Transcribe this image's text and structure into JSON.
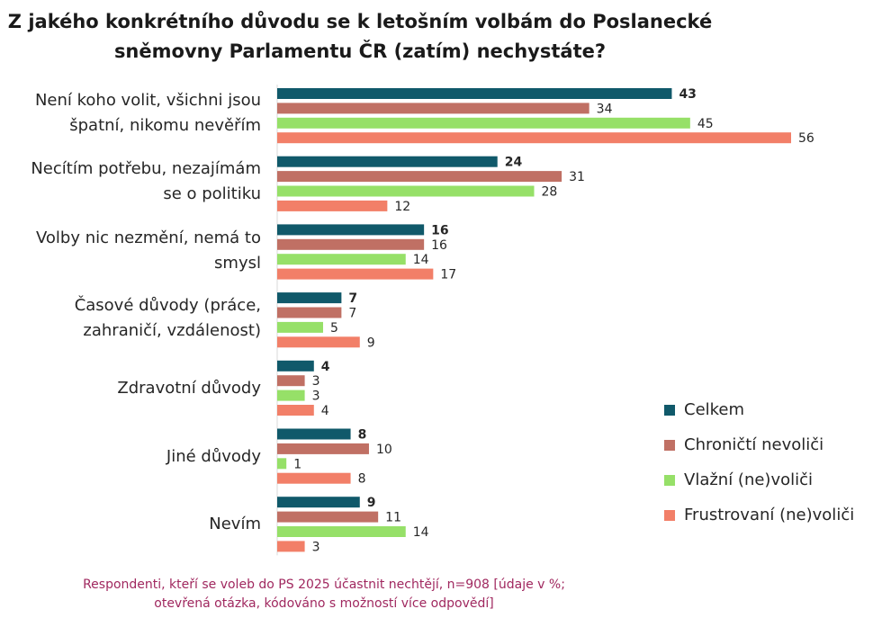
{
  "chart_data": {
    "type": "bar",
    "orientation": "horizontal",
    "title_lines": [
      "Z jakého konkrétního důvodu se k letošním volbám do Poslanecké",
      "sněmovny Parlamentu ČR (zatím) nechystáte?"
    ],
    "categories": [
      [
        "Není koho volit, všichni jsou",
        "špatní, nikomu nevěřím"
      ],
      [
        "Necítím potřebu, nezajímám",
        "se o politiku"
      ],
      [
        "Volby nic nezmění, nemá to",
        "smysl"
      ],
      [
        "Časové důvody (práce,",
        "zahraničí, vzdálenost)"
      ],
      [
        "Zdravotní důvody"
      ],
      [
        "Jiné důvody"
      ],
      [
        "Nevím"
      ]
    ],
    "series": [
      {
        "name": "Celkem",
        "color": "#10596a",
        "bold_labels": true,
        "values": [
          43,
          24,
          16,
          7,
          4,
          8,
          9
        ]
      },
      {
        "name": "Chroničtí nevoliči",
        "color": "#c07064",
        "bold_labels": false,
        "values": [
          34,
          31,
          16,
          7,
          3,
          10,
          11
        ]
      },
      {
        "name": "Vlažní (ne)voliči",
        "color": "#96e068",
        "bold_labels": false,
        "values": [
          45,
          28,
          14,
          5,
          3,
          1,
          14
        ]
      },
      {
        "name": "Frustrovaní (ne)voliči",
        "color": "#f27f68",
        "bold_labels": false,
        "values": [
          56,
          12,
          17,
          9,
          4,
          8,
          3
        ]
      }
    ],
    "xlim": [
      0,
      56
    ],
    "grid": false,
    "legend_position": "right"
  },
  "footnote_lines": [
    "Respondenti, kteří se voleb do PS 2025 účastnit nechtějí, n=908 [údaje v %;",
    "otevřená otázka, kódováno s možností více odpovědí]"
  ]
}
